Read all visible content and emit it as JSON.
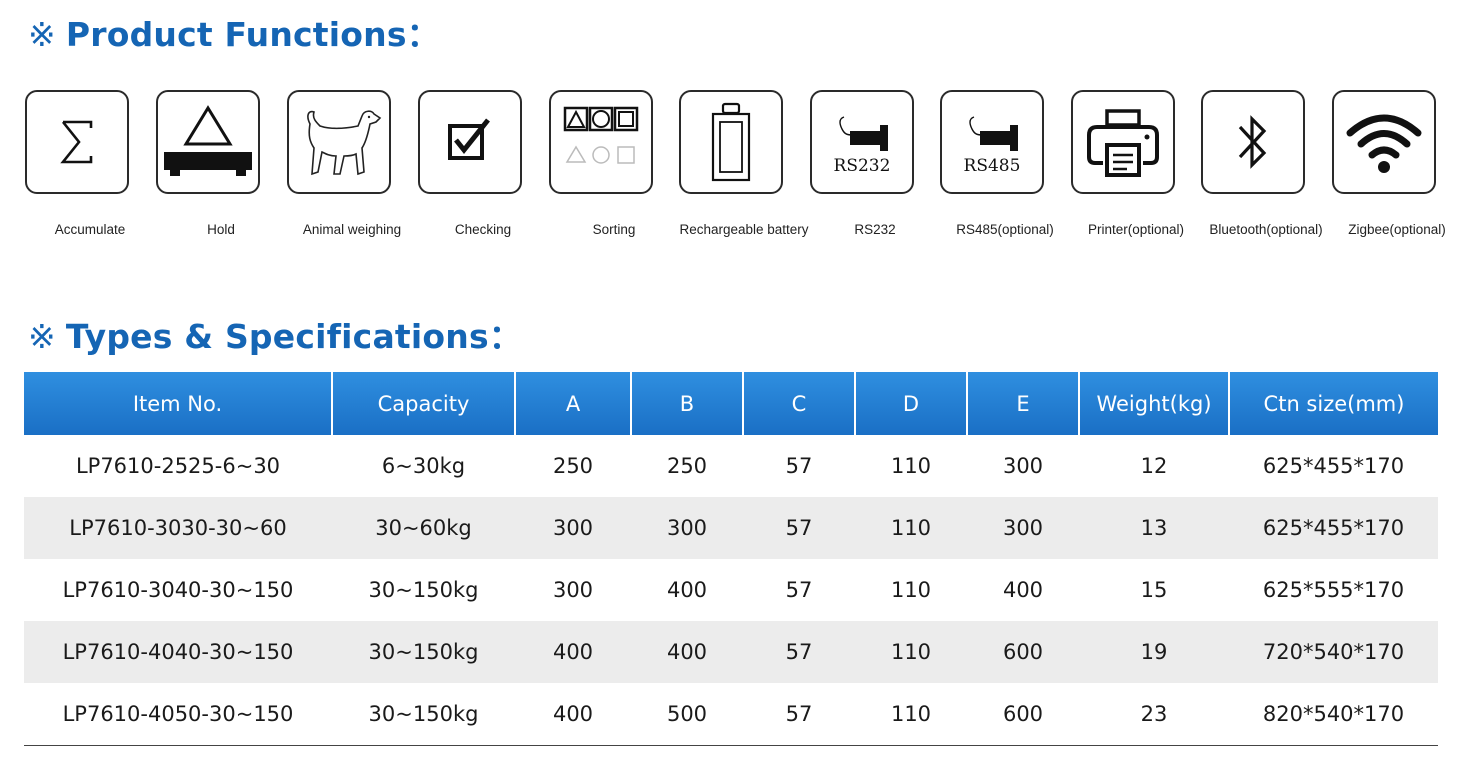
{
  "functions": {
    "mark": "※",
    "title": "Product Functions：",
    "items": [
      {
        "label": "Accumulate",
        "icon": "sigma-icon"
      },
      {
        "label": "Hold",
        "icon": "scale-triangle-icon"
      },
      {
        "label": "Animal weighing",
        "icon": "dog-icon"
      },
      {
        "label": "Checking",
        "icon": "checkbox-icon"
      },
      {
        "label": "Sorting",
        "icon": "shapes-icon"
      },
      {
        "label": "Rechargeable battery",
        "icon": "battery-icon"
      },
      {
        "label": "RS232",
        "icon": "rs232-plug-icon",
        "icon_text": "RS232"
      },
      {
        "label": "RS485(optional)",
        "icon": "rs485-plug-icon",
        "icon_text": "RS485"
      },
      {
        "label": "Printer(optional)",
        "icon": "printer-icon"
      },
      {
        "label": "Bluetooth(optional)",
        "icon": "bluetooth-icon"
      },
      {
        "label": "Zigbee(optional)",
        "icon": "wifi-icon"
      }
    ]
  },
  "specs": {
    "mark": "※",
    "title": "Types & Specifications：",
    "header_color": "#1f78cf",
    "columns": [
      "Item No.",
      "Capacity",
      "A",
      "B",
      "C",
      "D",
      "E",
      "Weight(kg)",
      "Ctn size(mm)"
    ],
    "rows": [
      [
        "LP7610-2525-6~30",
        "6~30kg",
        "250",
        "250",
        "57",
        "110",
        "300",
        "12",
        "625*455*170"
      ],
      [
        "LP7610-3030-30~60",
        "30~60kg",
        "300",
        "300",
        "57",
        "110",
        "300",
        "13",
        "625*455*170"
      ],
      [
        "LP7610-3040-30~150",
        "30~150kg",
        "300",
        "400",
        "57",
        "110",
        "400",
        "15",
        "625*555*170"
      ],
      [
        "LP7610-4040-30~150",
        "30~150kg",
        "400",
        "400",
        "57",
        "110",
        "600",
        "19",
        "720*540*170"
      ],
      [
        "LP7610-4050-30~150",
        "30~150kg",
        "400",
        "500",
        "57",
        "110",
        "600",
        "23",
        "820*540*170"
      ]
    ]
  }
}
